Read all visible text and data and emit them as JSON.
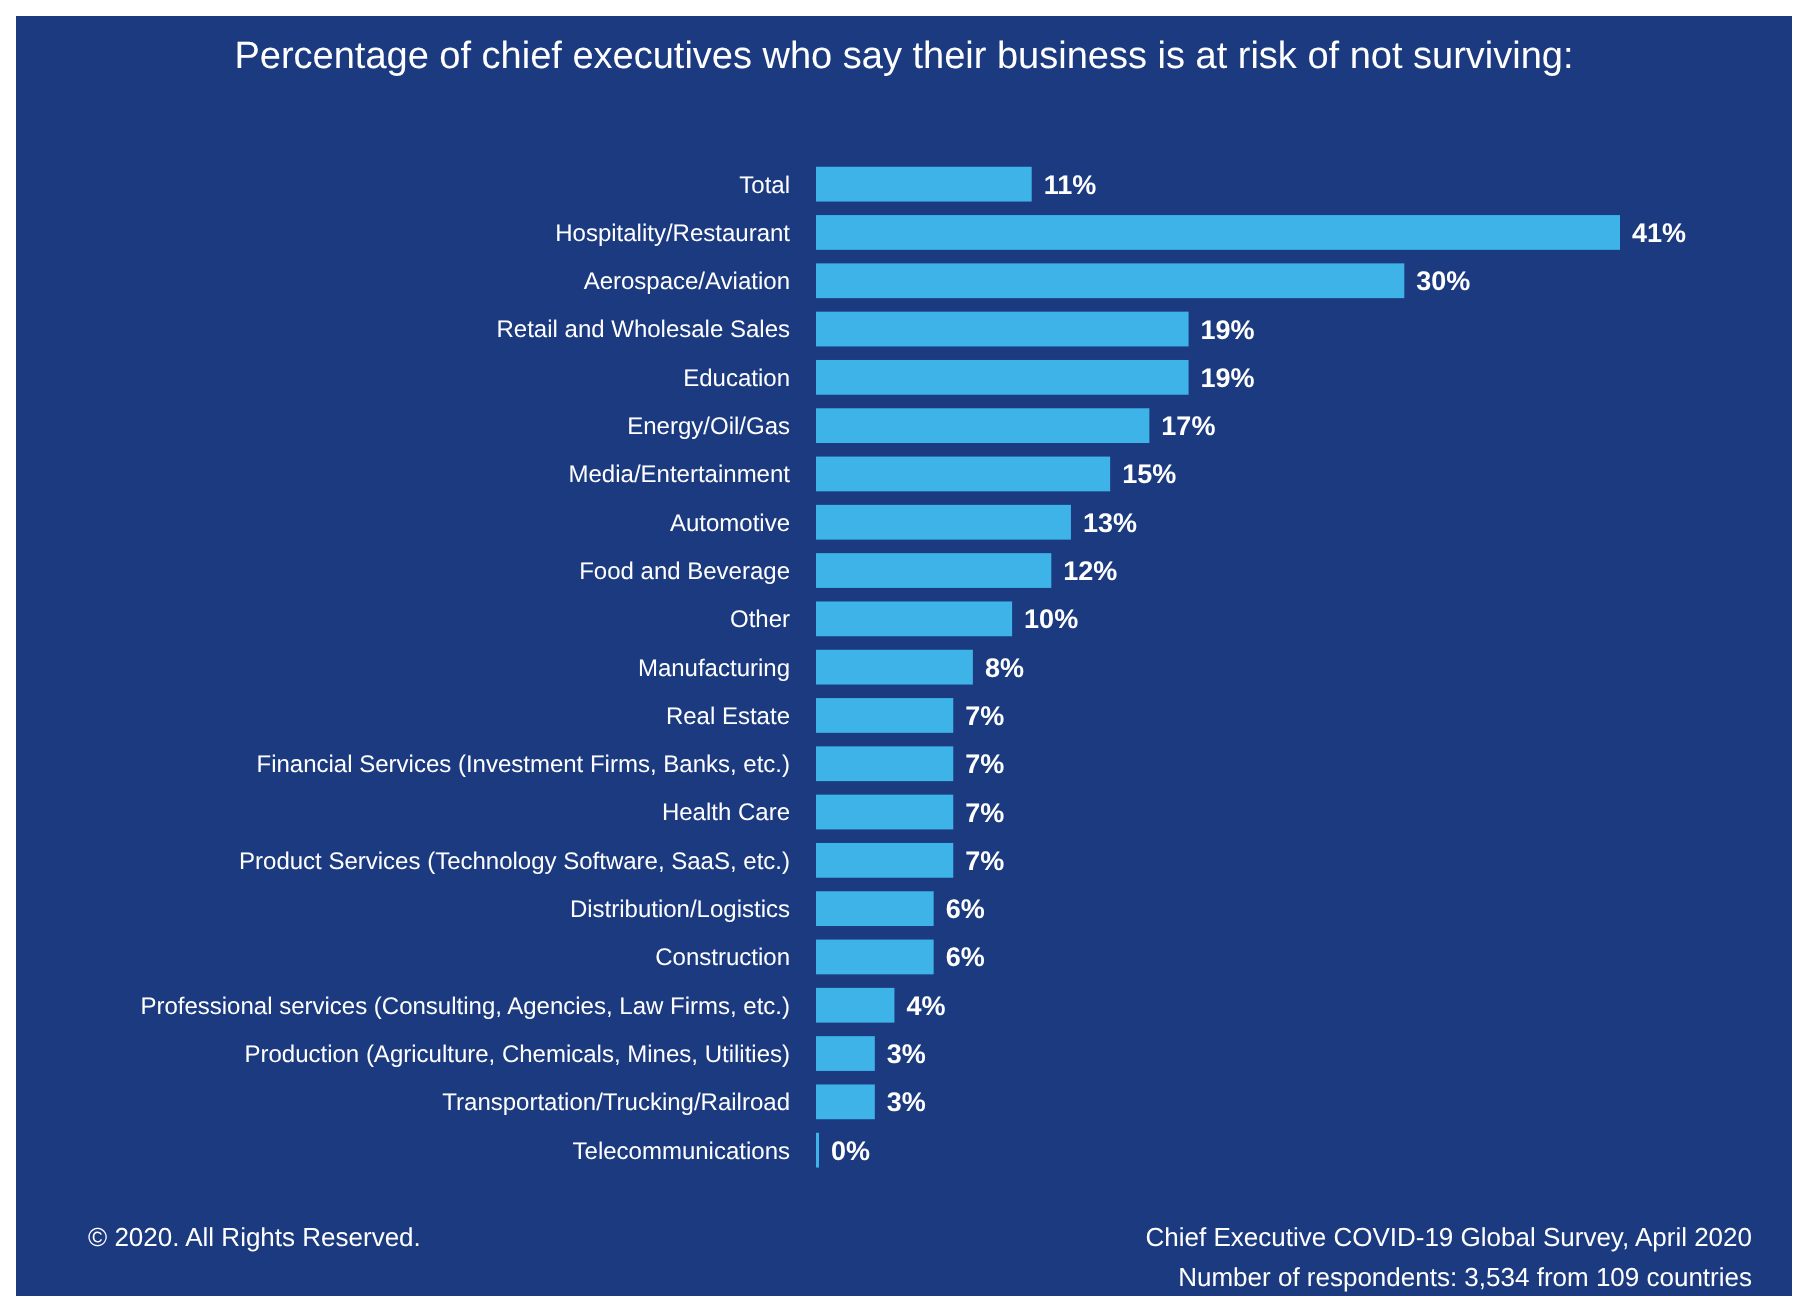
{
  "chart_data": {
    "type": "bar",
    "orientation": "horizontal",
    "title": "Percentage of chief executives who say their business is at risk of not surviving:",
    "categories": [
      "Total",
      "Hospitality/Restaurant",
      "Aerospace/Aviation",
      "Retail and Wholesale Sales",
      "Education",
      "Energy/Oil/Gas",
      "Media/Entertainment",
      "Automotive",
      "Food and Beverage",
      "Other",
      "Manufacturing",
      "Real Estate",
      "Financial Services (Investment Firms, Banks, etc.)",
      "Health Care",
      "Product Services (Technology Software, SaaS, etc.)",
      "Distribution/Logistics",
      "Construction",
      "Professional services (Consulting, Agencies, Law Firms, etc.)",
      "Production (Agriculture, Chemicals, Mines, Utilities)",
      "Transportation/Trucking/Railroad",
      "Telecommunications"
    ],
    "values": [
      11,
      41,
      30,
      19,
      19,
      17,
      15,
      13,
      12,
      10,
      8,
      7,
      7,
      7,
      7,
      6,
      6,
      4,
      3,
      3,
      0
    ],
    "value_labels": [
      "11%",
      "41%",
      "30%",
      "19%",
      "19%",
      "17%",
      "15%",
      "13%",
      "12%",
      "10%",
      "8%",
      "7%",
      "7%",
      "7%",
      "7%",
      "6%",
      "6%",
      "4%",
      "3%",
      "3%",
      "0%"
    ],
    "color": "#3db3e8",
    "tick_labels": "y",
    "annotations": [
      "© 2020. All Rights Reserved.",
      "Chief Executive COVID-19 Global Survey, April 2020",
      "Number of respondents: 3,534 from 109 countries"
    ]
  }
}
